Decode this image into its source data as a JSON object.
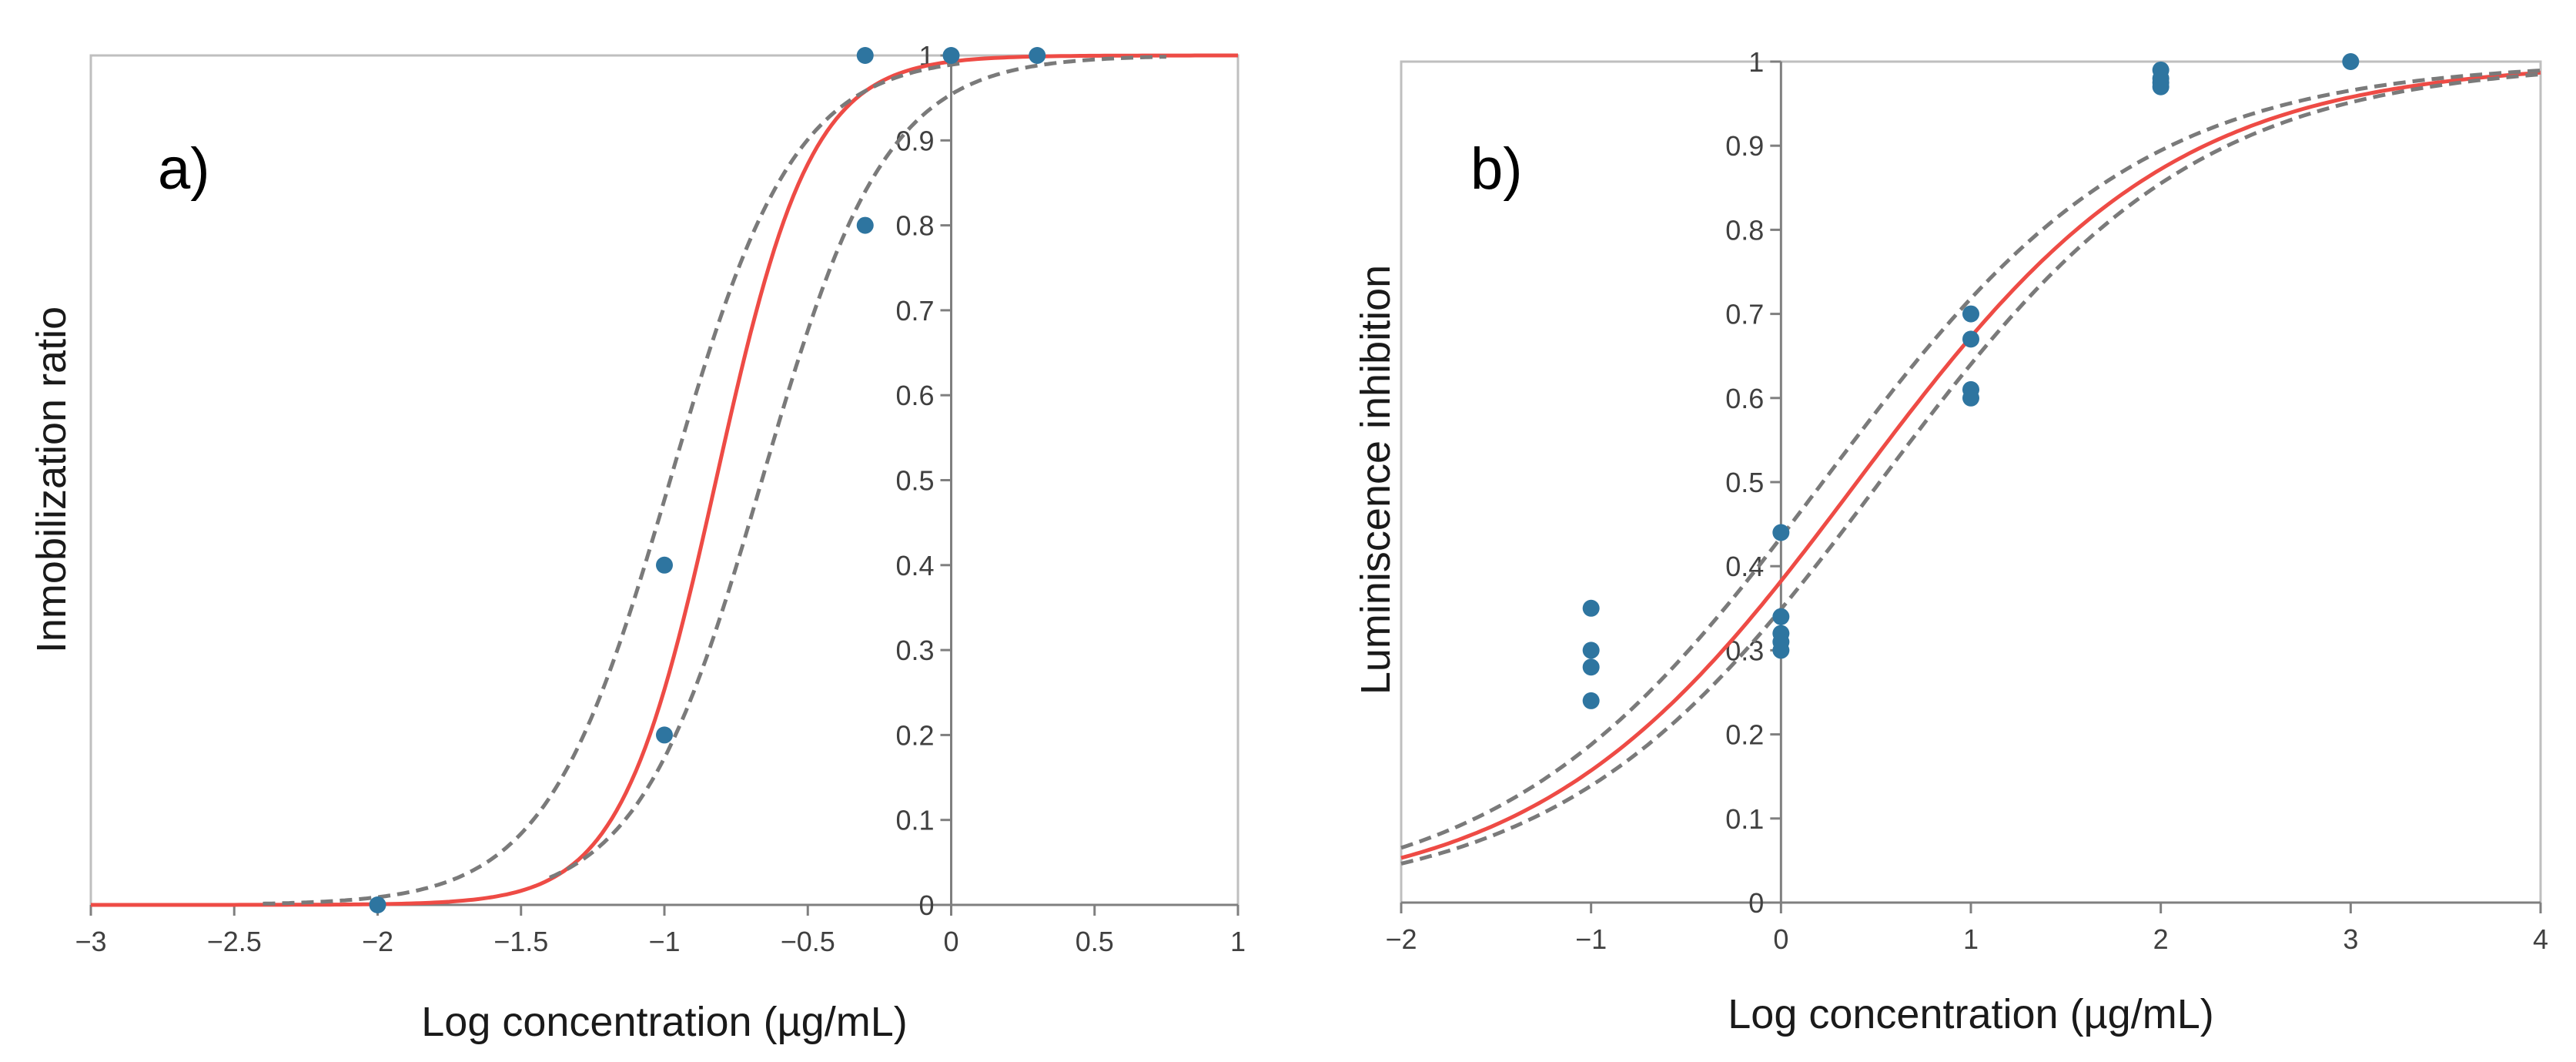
{
  "colors": {
    "fit": "#ee4b45",
    "ci": "#7a7a7a",
    "points": "#2e75a0",
    "axis": "#7f7f7f",
    "frame": "#bfbfbf"
  },
  "chart_data": [
    {
      "id": "a",
      "type": "scatter",
      "panel_label": "a)",
      "xlabel": "Log concentration (µg/mL)",
      "ylabel": "Inmobilization ratio",
      "xlim": [
        -3,
        1
      ],
      "ylim": [
        0,
        1
      ],
      "x_ticks": [
        -3,
        -2.5,
        -2,
        -1.5,
        -1,
        -0.5,
        0,
        0.5,
        1
      ],
      "x_tick_labels": [
        "−3",
        "−2.5",
        "−2",
        "−1.5",
        "−1",
        "−0.5",
        "0",
        "0.5",
        "1"
      ],
      "y_ticks": [
        0,
        0.1,
        0.2,
        0.3,
        0.4,
        0.5,
        0.6,
        0.7,
        0.8,
        0.9,
        1
      ],
      "y_tick_labels": [
        "0",
        "0.1",
        "0.2",
        "0.3",
        "0.4",
        "0.5",
        "0.6",
        "0.7",
        "0.8",
        "0.9",
        "1"
      ],
      "points": {
        "x": [
          -2,
          -1,
          -1,
          -0.3,
          -0.3,
          0,
          0.3
        ],
        "y": [
          0,
          0.4,
          0.2,
          0.8,
          1,
          1,
          1
        ]
      },
      "series": [
        {
          "name": "fit",
          "style": "solid",
          "x0": -0.82,
          "slope": 6.0,
          "xrange": [
            -3,
            1
          ]
        },
        {
          "name": "lower confidence bound",
          "style": "dashed",
          "x0": -0.66,
          "slope": 4.6,
          "xrange": [
            -1.4,
            0.75
          ]
        },
        {
          "name": "upper confidence bound",
          "style": "dashed",
          "x0": -0.98,
          "slope": 4.6,
          "xrange": [
            -2.4,
            0.05
          ]
        }
      ]
    },
    {
      "id": "b",
      "type": "scatter",
      "panel_label": "b)",
      "xlabel": "Log concentration (µg/mL)",
      "ylabel": "Luminiscence inhibition",
      "xlim": [
        -2,
        4
      ],
      "ylim": [
        0,
        1
      ],
      "x_ticks": [
        -2,
        -1,
        0,
        1,
        2,
        3,
        4
      ],
      "x_tick_labels": [
        "−2",
        "−1",
        "0",
        "1",
        "2",
        "3",
        "4"
      ],
      "y_ticks": [
        0,
        0.1,
        0.2,
        0.3,
        0.4,
        0.5,
        0.6,
        0.7,
        0.8,
        0.9,
        1
      ],
      "y_tick_labels": [
        "0",
        "0.1",
        "0.2",
        "0.3",
        "0.4",
        "0.5",
        "0.6",
        "0.7",
        "0.8",
        "0.9",
        "1"
      ],
      "points": {
        "x": [
          -1,
          -1,
          -1,
          -1,
          0,
          0,
          0,
          0,
          0,
          1,
          1,
          1,
          1,
          2,
          2,
          2,
          2,
          3
        ],
        "y": [
          0.35,
          0.3,
          0.28,
          0.24,
          0.44,
          0.34,
          0.32,
          0.31,
          0.3,
          0.7,
          0.67,
          0.61,
          0.6,
          0.99,
          0.98,
          0.975,
          0.97,
          1
        ]
      },
      "series": [
        {
          "name": "fit",
          "style": "solid",
          "x0": 0.4,
          "slope": 1.2,
          "xrange": [
            -2,
            4
          ]
        },
        {
          "name": "lower confidence bound",
          "style": "dashed",
          "x0": 0.52,
          "slope": 1.2,
          "xrange": [
            -2,
            4
          ]
        },
        {
          "name": "upper confidence bound",
          "style": "dashed",
          "x0": 0.22,
          "slope": 1.2,
          "xrange": [
            -2,
            4
          ]
        }
      ]
    }
  ]
}
